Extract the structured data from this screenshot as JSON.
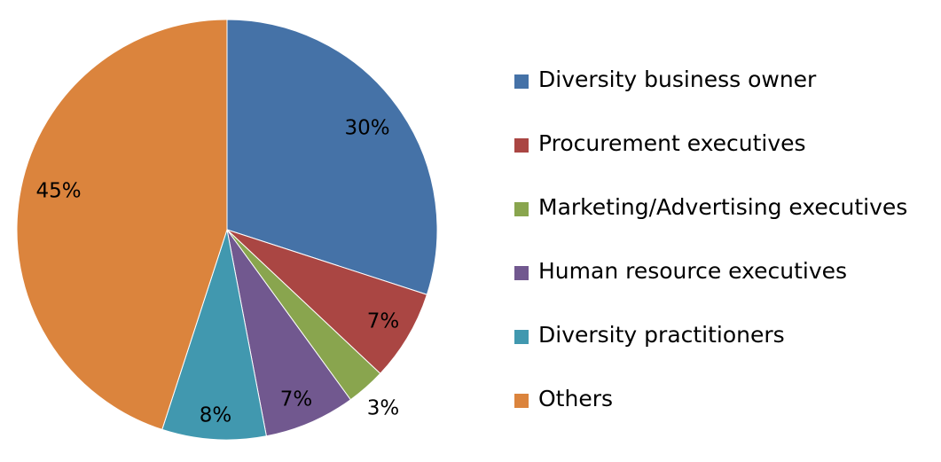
{
  "chart_data": {
    "type": "pie",
    "title": "",
    "legend": "right",
    "slices": [
      {
        "label": "Diversity business owner",
        "value": 30,
        "value_label": "30%",
        "color": "#4572A7"
      },
      {
        "label": "Procurement executives",
        "value": 7,
        "value_label": "7%",
        "color": "#AA4643"
      },
      {
        "label": "Marketing/Advertising executives",
        "value": 3,
        "value_label": "3%",
        "color": "#89A54E"
      },
      {
        "label": "Human resource executives",
        "value": 7,
        "value_label": "7%",
        "color": "#71588F"
      },
      {
        "label": "Diversity practitioners",
        "value": 8,
        "value_label": "8%",
        "color": "#4198AF"
      },
      {
        "label": "Others",
        "value": 45,
        "value_label": "45%",
        "color": "#DB843D"
      }
    ]
  }
}
